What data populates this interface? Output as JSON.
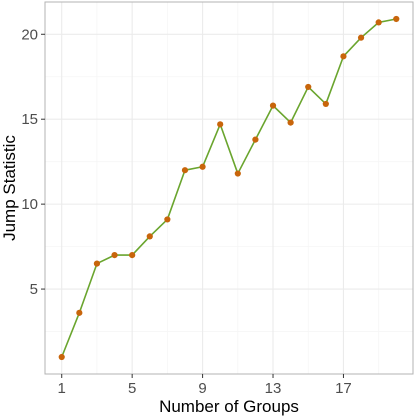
{
  "chart_data": {
    "type": "line",
    "xlabel": "Number of Groups",
    "ylabel": "Jump Statistic",
    "x": [
      1,
      2,
      3,
      4,
      5,
      6,
      7,
      8,
      9,
      10,
      11,
      12,
      13,
      14,
      15,
      16,
      17,
      18,
      19,
      20
    ],
    "series": [
      {
        "values": [
          1.0,
          3.6,
          6.5,
          7.0,
          7.0,
          8.1,
          9.1,
          12.0,
          12.2,
          14.7,
          11.8,
          13.8,
          15.8,
          14.8,
          16.9,
          15.9,
          18.7,
          19.8,
          20.7,
          20.9
        ]
      }
    ],
    "xticks": [
      1,
      5,
      9,
      13,
      17
    ],
    "yticks": [
      5,
      10,
      15,
      20
    ],
    "xlim": [
      0.05,
      20.95
    ],
    "ylim": [
      0.0,
      21.9
    ],
    "grid": true,
    "colors": {
      "line": "#6aa52e",
      "point": "#c8650b",
      "grid_major": "#ebebeb",
      "grid_minor": "#f5f5f5",
      "panel_border": "#b3b3b3"
    }
  }
}
